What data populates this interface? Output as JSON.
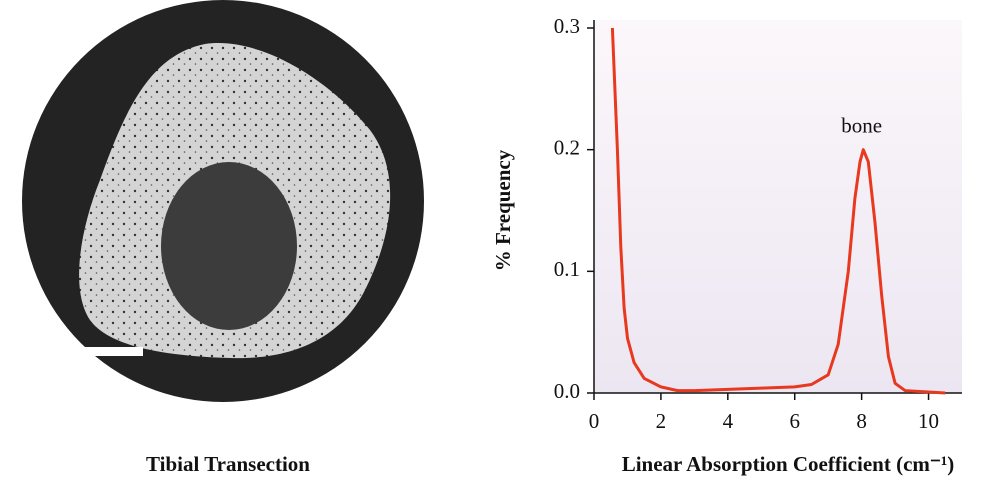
{
  "image_caption": "Tibial Transection",
  "chart_data": {
    "type": "line",
    "xlabel": "Linear Absorption Coefficient (cm⁻¹)",
    "ylabel": "% Frequency",
    "annotation": {
      "text": "bone",
      "x": 8.0,
      "y": 0.2
    },
    "x": [
      0.55,
      0.7,
      0.8,
      0.9,
      1.0,
      1.2,
      1.5,
      2.0,
      2.5,
      3.0,
      4.0,
      5.0,
      6.0,
      6.5,
      7.0,
      7.3,
      7.6,
      7.8,
      7.95,
      8.05,
      8.2,
      8.4,
      8.6,
      8.8,
      9.0,
      9.3,
      10.5
    ],
    "values": [
      0.3,
      0.2,
      0.12,
      0.07,
      0.045,
      0.025,
      0.012,
      0.005,
      0.002,
      0.002,
      0.003,
      0.004,
      0.005,
      0.007,
      0.015,
      0.04,
      0.1,
      0.16,
      0.19,
      0.2,
      0.19,
      0.14,
      0.08,
      0.03,
      0.008,
      0.002,
      0.0
    ],
    "color": "#e8391f",
    "xlim": [
      0,
      11
    ],
    "ylim": [
      0,
      0.3
    ],
    "xticks": [
      0,
      2,
      4,
      6,
      8,
      10
    ],
    "yticks": [
      {
        "value": 0,
        "label": "0.0"
      },
      0.1,
      0.2,
      0.3
    ]
  }
}
